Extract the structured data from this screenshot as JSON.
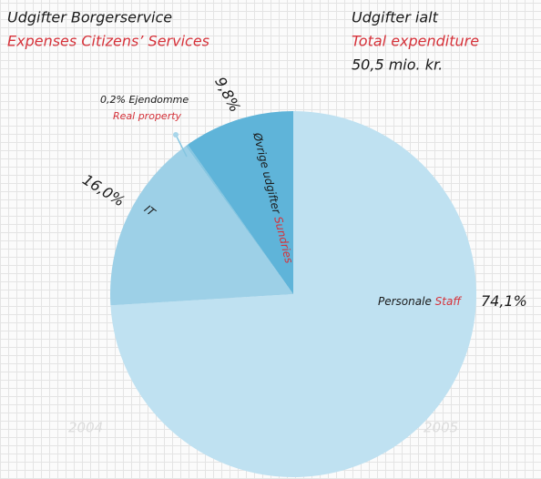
{
  "chart_data": {
    "type": "pie",
    "title": "Udgifter Borgerservice",
    "title_en": "Expenses Citizens’ Services",
    "total_title": "Udgifter ialt",
    "total_title_en": "Total expenditure",
    "total": "50,5 mio. kr.",
    "categories": [
      "Personale",
      "IT",
      "Ejendomme",
      "Øvrige udgifter"
    ],
    "categories_en": [
      "Staff",
      null,
      "Real property",
      "Sundries"
    ],
    "values": [
      74.1,
      16.0,
      0.2,
      9.8
    ],
    "value_labels": [
      "74,1%",
      "16,0%",
      "0,2%",
      "9,8%"
    ],
    "colors": [
      "#bfe1f1",
      "#9dd0e7",
      "#86c6e1",
      "#5fb4d9"
    ],
    "annotations": [
      "2004",
      "2005"
    ]
  }
}
